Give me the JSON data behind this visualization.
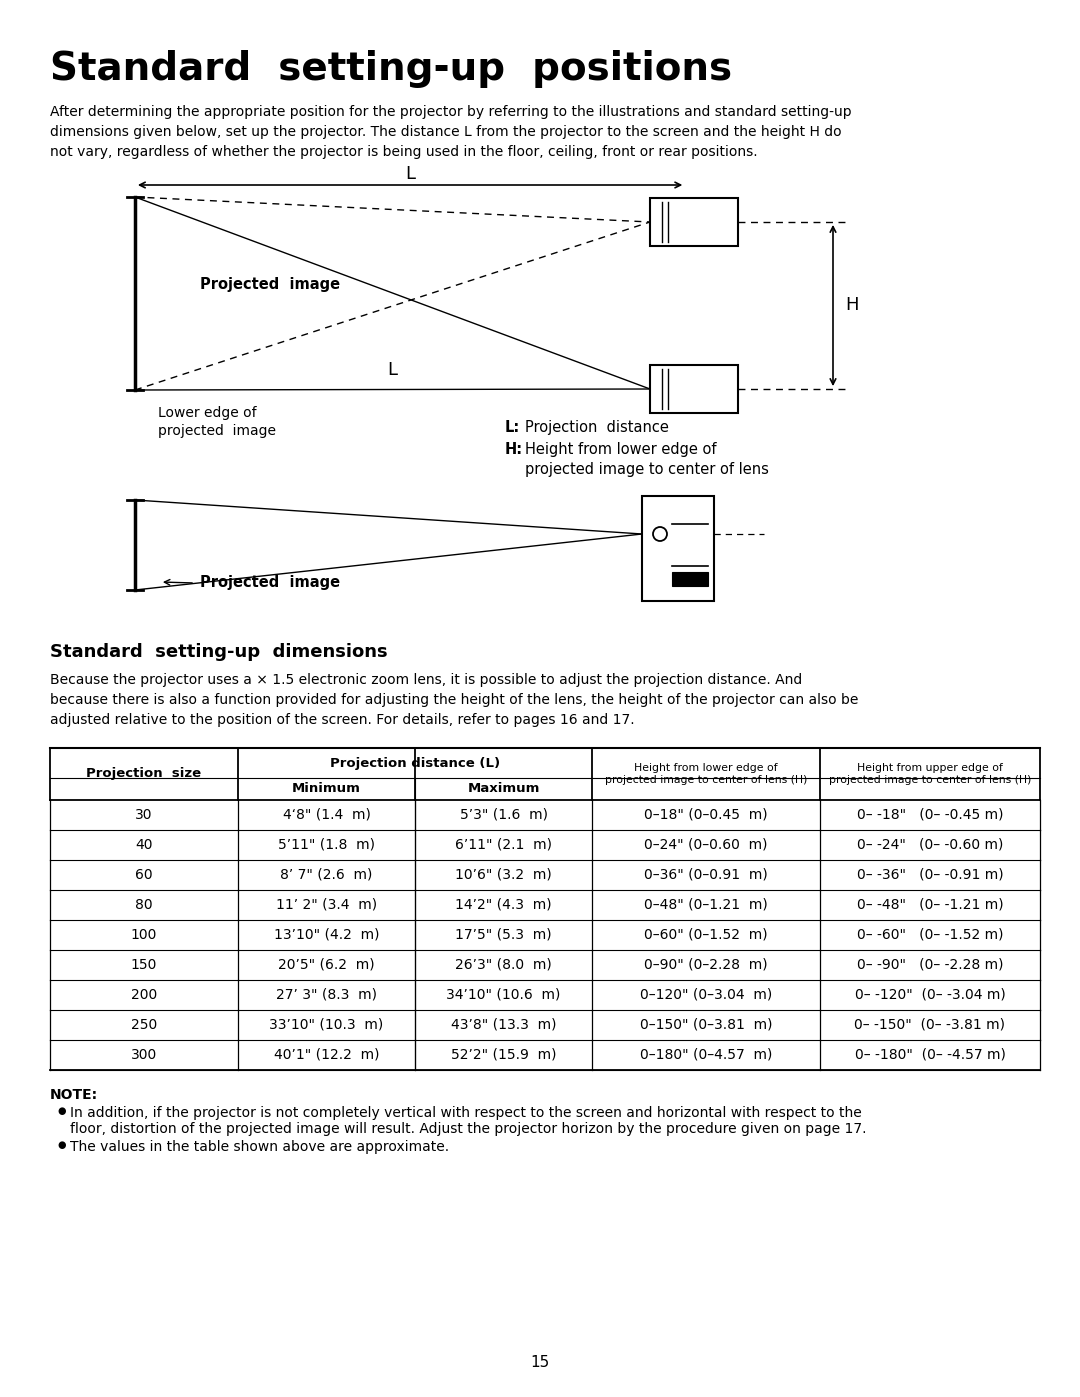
{
  "title": "Standard  setting-up  positions",
  "intro_text": "After determining the appropriate position for the projector by referring to the illustrations and standard setting-up\ndimensions given below, set up the projector. The distance L from the projector to the screen and the height H do\nnot vary, regardless of whether the projector is being used in the floor, ceiling, front or rear positions.",
  "section2_title": "Standard  setting-up  dimensions",
  "section2_text": "Because the projector uses a × 1.5 electronic zoom lens, it is possible to adjust the projection distance. And\nbecause there is also a function provided for adjusting the height of the lens, the height of the projector can also be\nadjusted relative to the position of the screen. For details, refer to pages 16 and 17.",
  "table_rows": [
    [
      "30",
      "4‘8\" (1.4  m)",
      "5’3\" (1.6  m)",
      "0–18\" (0–0.45  m)",
      "0– -18\"   (0– -0.45 m)"
    ],
    [
      "40",
      "5’11\" (1.8  m)",
      "6’11\" (2.1  m)",
      "0–24\" (0–0.60  m)",
      "0– -24\"   (0– -0.60 m)"
    ],
    [
      "60",
      "8’ 7\" (2.6  m)",
      "10’6\" (3.2  m)",
      "0–36\" (0–0.91  m)",
      "0– -36\"   (0– -0.91 m)"
    ],
    [
      "80",
      "11’ 2\" (3.4  m)",
      "14’2\" (4.3  m)",
      "0–48\" (0–1.21  m)",
      "0– -48\"   (0– -1.21 m)"
    ],
    [
      "100",
      "13’10\" (4.2  m)",
      "17’5\" (5.3  m)",
      "0–60\" (0–1.52  m)",
      "0– -60\"   (0– -1.52 m)"
    ],
    [
      "150",
      "20’5\" (6.2  m)",
      "26’3\" (8.0  m)",
      "0–90\" (0–2.28  m)",
      "0– -90\"   (0– -2.28 m)"
    ],
    [
      "200",
      "27’ 3\" (8.3  m)",
      "34’10\" (10.6  m)",
      "0–120\" (0–3.04  m)",
      "0– -120\"  (0– -3.04 m)"
    ],
    [
      "250",
      "33’10\" (10.3  m)",
      "43’8\" (13.3  m)",
      "0–150\" (0–3.81  m)",
      "0– -150\"  (0– -3.81 m)"
    ],
    [
      "300",
      "40’1\" (12.2  m)",
      "52’2\" (15.9  m)",
      "0–180\" (0–4.57  m)",
      "0– -180\"  (0– -4.57 m)"
    ]
  ],
  "note_title": "NOTE:",
  "note_bullet1": "In addition, if the projector is not completely vertical with respect to the screen and horizontal with respect to the",
  "note_bullet1b": "floor, distortion of the projected image will result. Adjust the projector horizon by the procedure given on page 17.",
  "note_bullet2": "The values in the table shown above are approximate.",
  "page_number": "15",
  "bg_color": "#ffffff",
  "text_color": "#000000"
}
